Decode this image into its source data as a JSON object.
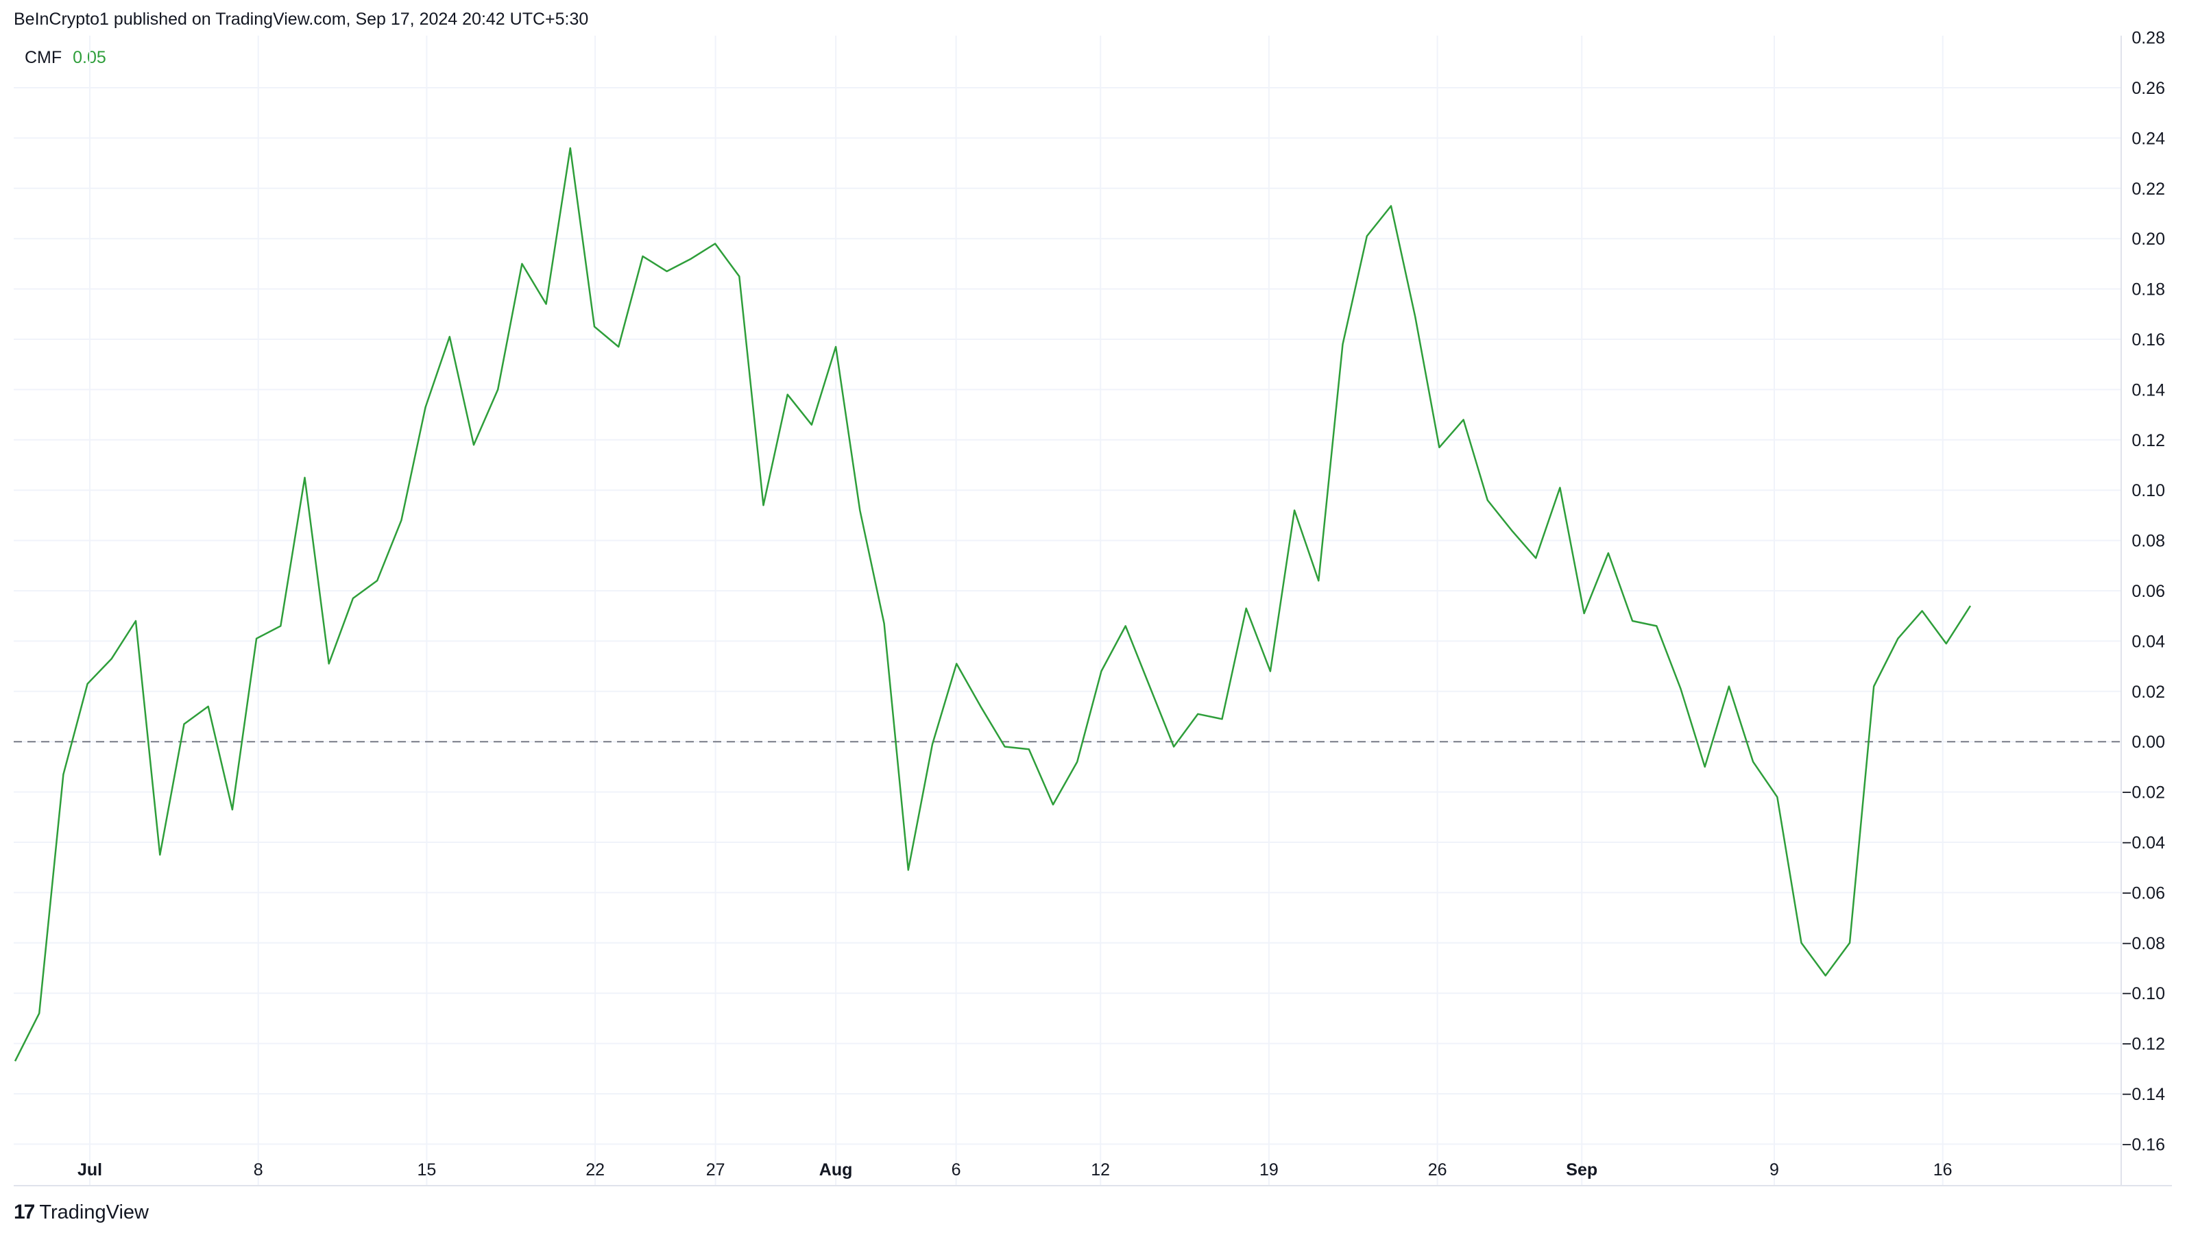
{
  "header": {
    "published": "BeInCrypto1 published on TradingView.com, Sep 17, 2024 20:42 UTC+5:30"
  },
  "legend": {
    "name": "CMF",
    "value": "0.05"
  },
  "footer": {
    "brand": "TradingView"
  },
  "colors": {
    "line": "#2e9e3a",
    "grid": "#f0f3fa",
    "zero_line": "#787b86",
    "text": "#131722"
  },
  "chart_data": {
    "type": "line",
    "title": "",
    "xlabel": "",
    "ylabel": "",
    "ylim": [
      -0.16,
      0.28
    ],
    "y_ticks": [
      "0.26",
      "0.24",
      "0.22",
      "0.20",
      "0.18",
      "0.16",
      "0.14",
      "0.12",
      "0.10",
      "0.08",
      "0.06",
      "0.04",
      "0.02",
      "0.00",
      "−0.02",
      "−0.04",
      "−0.06",
      "−0.08",
      "−0.10",
      "−0.12",
      "−0.14",
      "−0.16"
    ],
    "y_top_partial_tick": "0.28",
    "x_ticks": [
      {
        "label": "Jul",
        "day": 0,
        "bold": true
      },
      {
        "label": "8",
        "day": 7,
        "bold": false
      },
      {
        "label": "15",
        "day": 14,
        "bold": false
      },
      {
        "label": "22",
        "day": 21,
        "bold": false
      },
      {
        "label": "27",
        "day": 26,
        "bold": false
      },
      {
        "label": "Aug",
        "day": 31,
        "bold": true
      },
      {
        "label": "6",
        "day": 36,
        "bold": false
      },
      {
        "label": "12",
        "day": 42,
        "bold": false
      },
      {
        "label": "19",
        "day": 49,
        "bold": false
      },
      {
        "label": "26",
        "day": 56,
        "bold": false
      },
      {
        "label": "Sep",
        "day": 62,
        "bold": true
      },
      {
        "label": "9",
        "day": 70,
        "bold": false
      },
      {
        "label": "16",
        "day": 77,
        "bold": false
      }
    ],
    "zero_line": true,
    "grid": true,
    "series": [
      {
        "values": [
          -0.127,
          -0.108,
          -0.013,
          0.023,
          0.033,
          0.048,
          -0.045,
          0.007,
          0.014,
          -0.027,
          0.041,
          0.046,
          0.105,
          0.031,
          0.057,
          0.064,
          0.088,
          0.133,
          0.161,
          0.118,
          0.14,
          0.19,
          0.174,
          0.236,
          0.165,
          0.157,
          0.193,
          0.187,
          0.192,
          0.198,
          0.185,
          0.094,
          0.138,
          0.126,
          0.157,
          0.092,
          0.047,
          -0.051,
          -0.001,
          0.031,
          0.014,
          -0.002,
          -0.003,
          -0.025,
          -0.008,
          0.028,
          0.046,
          0.022,
          -0.002,
          0.011,
          0.009,
          0.053,
          0.028,
          0.092,
          0.064,
          0.158,
          0.201,
          0.213,
          0.169,
          0.117,
          0.128,
          0.096,
          0.084,
          0.073,
          0.101,
          0.051,
          0.075,
          0.048,
          0.046,
          0.021,
          -0.01,
          0.022,
          -0.008,
          -0.022,
          -0.08,
          -0.093,
          -0.08,
          0.022,
          0.041,
          0.052,
          0.039,
          0.054
        ]
      }
    ]
  }
}
